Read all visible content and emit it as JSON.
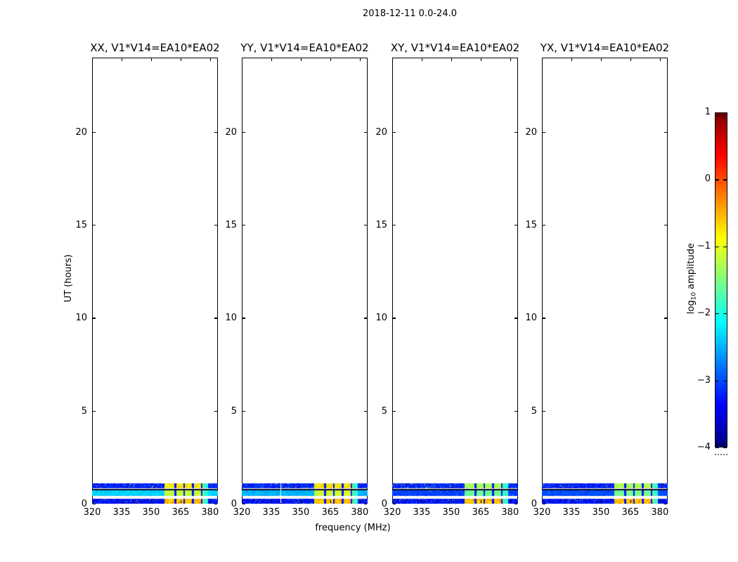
{
  "figure": {
    "background": "#ffffff"
  },
  "chart_data": {
    "type": "heatmap",
    "title": "2018-12-11 0.0-24.0",
    "xlabel": "frequency (MHz)",
    "ylabel": "UT (hours)",
    "xlim": [
      320,
      384
    ],
    "ylim": [
      0,
      24
    ],
    "xticks": [
      320,
      335,
      350,
      365,
      380
    ],
    "yticks": [
      0,
      5,
      10,
      15,
      20
    ],
    "grid": false,
    "legend": "none",
    "colormap": "jet",
    "colormap_stops": [
      {
        "pos": 0.0,
        "color": "#00007f"
      },
      {
        "pos": 0.125,
        "color": "#0000ff"
      },
      {
        "pos": 0.375,
        "color": "#00ffff"
      },
      {
        "pos": 0.625,
        "color": "#ffff00"
      },
      {
        "pos": 0.875,
        "color": "#ff0000"
      },
      {
        "pos": 1.0,
        "color": "#7f0000"
      }
    ],
    "colorbar": {
      "label_parts": {
        "pre": "log",
        "sub": "10",
        "post": " amplitude"
      },
      "range": [
        -4,
        1
      ],
      "ticks": [
        1,
        0,
        -1,
        -2,
        -3,
        -4
      ],
      "orientation": "vertical"
    },
    "panels": [
      {
        "id": "XX",
        "title": "XX, V1*V14=EA10*EA02",
        "band_b_base": -2.35,
        "bright_offset": 0.0,
        "gap_freq": null,
        "seed": 101
      },
      {
        "id": "YY",
        "title": "YY, V1*V14=EA10*EA02",
        "band_b_base": -2.5,
        "bright_offset": 0.05,
        "gap_freq": 339.6,
        "seed": 202
      },
      {
        "id": "XY",
        "title": "XY, V1*V14=EA10*EA02",
        "band_b_base": -3.05,
        "bright_offset": -0.45,
        "gap_freq": null,
        "seed": 303
      },
      {
        "id": "YX",
        "title": "YX, V1*V14=EA10*EA02",
        "band_b_base": -3.0,
        "bright_offset": -0.4,
        "gap_freq": null,
        "seed": 404
      }
    ],
    "bands": [
      {
        "name": "scan-1",
        "ut_range": [
          0.02,
          0.25
        ],
        "base": -3.35,
        "bright": -0.55,
        "noise": 0.4,
        "spike_p": 0.025
      },
      {
        "name": "scan-2",
        "ut_range": [
          0.44,
          0.73
        ],
        "base": null,
        "bright": -1.15,
        "noise": 0.22,
        "spike_p": 0.004
      },
      {
        "name": "divider-row",
        "ut_range": [
          0.74,
          0.8
        ],
        "color": "#04041c"
      },
      {
        "name": "scan-3",
        "ut_range": [
          0.87,
          1.1
        ],
        "base": -3.25,
        "bright": -0.85,
        "noise": 0.45,
        "spike_p": 0.03
      }
    ],
    "rfi": {
      "start": 356.6,
      "end": 378.8,
      "tail_start": 376.4,
      "tail_value": -1.9,
      "breaks": [
        361.7,
        366.2,
        370.7,
        375.2
      ],
      "break_width": 0.9,
      "break_value": -3.3
    }
  }
}
